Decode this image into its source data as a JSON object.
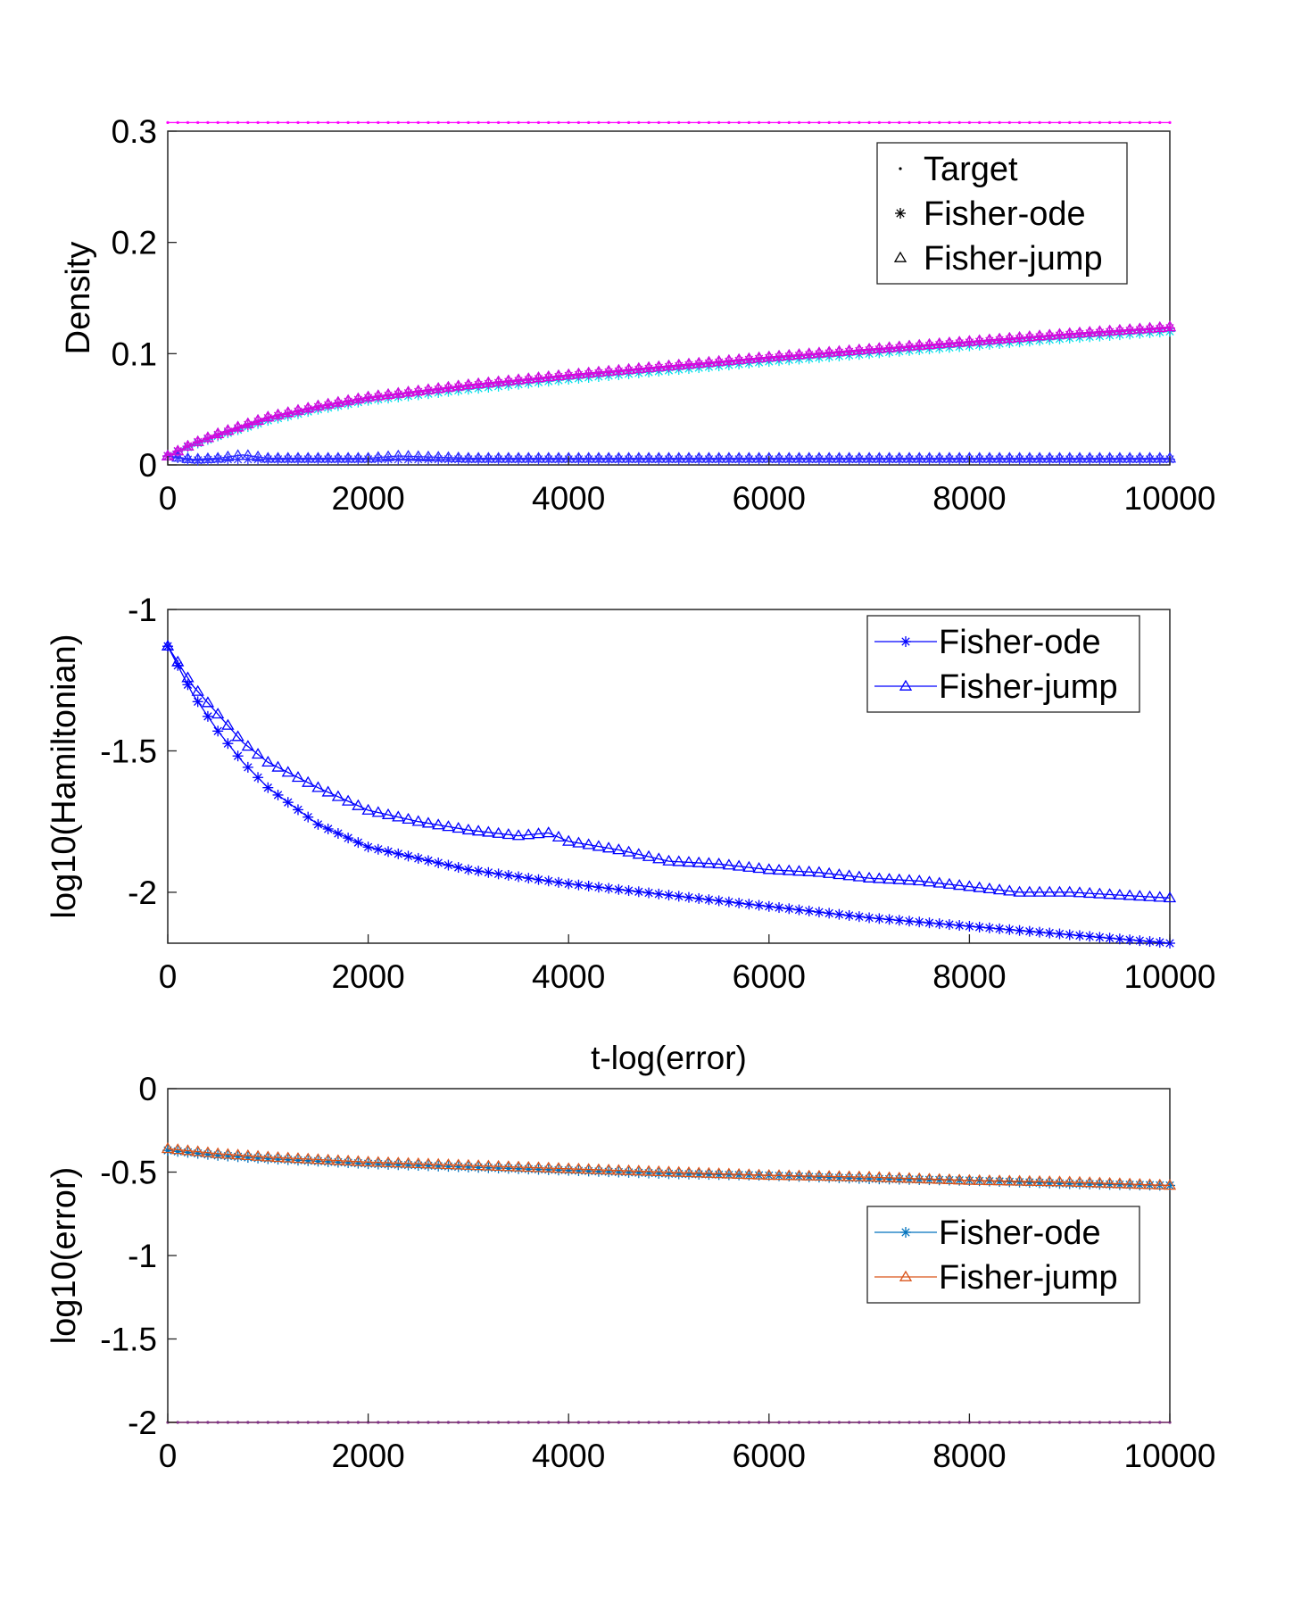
{
  "figure": {
    "background": "#ffffff",
    "axis_color": "#262626"
  },
  "chart_data": [
    {
      "type": "line",
      "title": "",
      "xlabel": "",
      "ylabel": "Density",
      "xlim": [
        0,
        10000
      ],
      "ylim": [
        0,
        0.3
      ],
      "xticks": [
        0,
        2000,
        4000,
        6000,
        8000,
        10000
      ],
      "xtick_labels": [
        "0",
        "2000",
        "4000",
        "6000",
        "8000",
        "10000"
      ],
      "yticks": [
        0,
        0.1,
        0.2,
        0.3
      ],
      "ytick_labels": [
        "0",
        "0.1",
        "0.2",
        "0.3"
      ],
      "grid": false,
      "legend": {
        "position": "top-right",
        "entries": [
          {
            "label": "Target",
            "marker": "dot",
            "color": "#000000",
            "line": false
          },
          {
            "label": "Fisher-ode",
            "marker": "star",
            "color": "#000000",
            "line": false
          },
          {
            "label": "Fisher-jump",
            "marker": "triangle",
            "color": "#000000",
            "line": false
          }
        ]
      },
      "series": [
        {
          "group": "Target",
          "marker": "dot",
          "color": "#ff00ff",
          "x": [
            0,
            10000
          ],
          "values": [
            0.3077,
            0.3077
          ]
        },
        {
          "group": "Fisher-ode",
          "marker": "star",
          "color": "#00e0e8",
          "x": [
            0,
            250,
            500,
            1000,
            1500,
            2000,
            3000,
            4000,
            5000,
            6000,
            7000,
            8000,
            9000,
            10000
          ],
          "values": [
            0.008,
            0.018,
            0.026,
            0.04,
            0.05,
            0.058,
            0.068,
            0.077,
            0.085,
            0.093,
            0.1,
            0.107,
            0.114,
            0.12
          ]
        },
        {
          "group": "Fisher-ode",
          "marker": "star",
          "color": "#3333ff",
          "x": [
            0,
            250,
            500,
            1000,
            1500,
            2000,
            3000,
            4000,
            5000,
            6000,
            7000,
            8000,
            9000,
            10000
          ],
          "values": [
            0.008,
            0.004,
            0.005,
            0.005,
            0.005,
            0.005,
            0.005,
            0.005,
            0.005,
            0.005,
            0.005,
            0.005,
            0.005,
            0.005
          ]
        },
        {
          "group": "Fisher-ode",
          "marker": "star",
          "color": "#dd00dd",
          "x": [
            0,
            250,
            500,
            1000,
            1500,
            2000,
            3000,
            4000,
            5000,
            6000,
            7000,
            8000,
            9000,
            10000
          ],
          "values": [
            0.008,
            0.019,
            0.027,
            0.042,
            0.052,
            0.06,
            0.071,
            0.08,
            0.088,
            0.096,
            0.103,
            0.11,
            0.117,
            0.123
          ]
        },
        {
          "group": "Fisher-jump",
          "marker": "triangle",
          "color": "#00e0e8",
          "x": [
            0,
            250,
            500,
            1000,
            1500,
            2000,
            3000,
            4000,
            5000,
            6000,
            7000,
            8000,
            9000,
            10000
          ],
          "values": [
            0.008,
            0.019,
            0.028,
            0.043,
            0.053,
            0.061,
            0.072,
            0.081,
            0.089,
            0.097,
            0.104,
            0.111,
            0.118,
            0.124
          ]
        },
        {
          "group": "Fisher-jump",
          "marker": "triangle",
          "color": "#2a2aff",
          "x": [
            0,
            250,
            500,
            750,
            1000,
            1500,
            2000,
            2300,
            3000,
            4000,
            5000,
            6000,
            7000,
            8000,
            9000,
            10000
          ],
          "values": [
            0.008,
            0.005,
            0.006,
            0.009,
            0.006,
            0.006,
            0.006,
            0.008,
            0.006,
            0.006,
            0.006,
            0.006,
            0.006,
            0.006,
            0.006,
            0.006
          ]
        },
        {
          "group": "Fisher-jump",
          "marker": "triangle",
          "color": "#dd00dd",
          "x": [
            0,
            250,
            500,
            1000,
            1500,
            2000,
            3000,
            4000,
            5000,
            6000,
            7000,
            8000,
            9000,
            10000
          ],
          "values": [
            0.008,
            0.019,
            0.028,
            0.043,
            0.053,
            0.061,
            0.072,
            0.081,
            0.089,
            0.097,
            0.104,
            0.111,
            0.118,
            0.124
          ]
        }
      ]
    },
    {
      "type": "line",
      "title": "",
      "xlabel": "",
      "ylabel": "log10(Hamiltonian)",
      "xlim": [
        0,
        10000
      ],
      "ylim": [
        -2.18,
        -1
      ],
      "xticks": [
        0,
        2000,
        4000,
        6000,
        8000,
        10000
      ],
      "xtick_labels": [
        "0",
        "2000",
        "4000",
        "6000",
        "8000",
        "10000"
      ],
      "yticks": [
        -1,
        -1.5,
        -2
      ],
      "ytick_labels": [
        "-1",
        "-1.5",
        "-2"
      ],
      "grid": false,
      "legend": {
        "position": "top-right",
        "entries": [
          {
            "label": "Fisher-ode",
            "marker": "star",
            "color": "#0000ff",
            "line": true
          },
          {
            "label": "Fisher-jump",
            "marker": "triangle",
            "color": "#0000ff",
            "line": true
          }
        ]
      },
      "series": [
        {
          "name": "Fisher-ode",
          "marker": "star",
          "color": "#0000ff",
          "x": [
            0,
            250,
            500,
            750,
            1000,
            1500,
            2000,
            3000,
            4000,
            5000,
            6000,
            7000,
            8000,
            9000,
            10000
          ],
          "values": [
            -1.13,
            -1.3,
            -1.43,
            -1.54,
            -1.63,
            -1.76,
            -1.84,
            -1.92,
            -1.97,
            -2.01,
            -2.05,
            -2.09,
            -2.12,
            -2.15,
            -2.18
          ]
        },
        {
          "name": "Fisher-jump",
          "marker": "triangle",
          "color": "#0000ff",
          "x": [
            0,
            250,
            500,
            750,
            1000,
            1500,
            2000,
            2500,
            3000,
            3500,
            3800,
            4000,
            4500,
            5000,
            5500,
            6000,
            6500,
            7000,
            7500,
            8000,
            8500,
            9000,
            9500,
            10000
          ],
          "values": [
            -1.13,
            -1.27,
            -1.37,
            -1.47,
            -1.54,
            -1.63,
            -1.71,
            -1.75,
            -1.78,
            -1.8,
            -1.79,
            -1.82,
            -1.85,
            -1.89,
            -1.9,
            -1.92,
            -1.93,
            -1.95,
            -1.96,
            -1.98,
            -2.0,
            -2.0,
            -2.01,
            -2.02
          ]
        }
      ]
    },
    {
      "type": "line",
      "title": "t-log(error)",
      "xlabel": "",
      "ylabel": "log10(error)",
      "xlim": [
        0,
        10000
      ],
      "ylim": [
        -2,
        0
      ],
      "xticks": [
        0,
        2000,
        4000,
        6000,
        8000,
        10000
      ],
      "xtick_labels": [
        "0",
        "2000",
        "4000",
        "6000",
        "8000",
        "10000"
      ],
      "yticks": [
        0,
        -0.5,
        -1,
        -1.5,
        -2
      ],
      "ytick_labels": [
        "0",
        "-0.5",
        "-1",
        "-1.5",
        "-2"
      ],
      "grid": false,
      "legend": {
        "position": "middle-right",
        "entries": [
          {
            "label": "Fisher-ode",
            "marker": "star",
            "color": "#0072bd",
            "line": true
          },
          {
            "label": "Fisher-jump",
            "marker": "triangle",
            "color": "#d95319",
            "line": true
          }
        ]
      },
      "series": [
        {
          "name": "Fisher-ode",
          "marker": "star",
          "color": "#0072bd",
          "x": [
            0,
            500,
            1000,
            2000,
            3000,
            4000,
            5000,
            6000,
            7000,
            8000,
            9000,
            10000
          ],
          "values": [
            -0.37,
            -0.4,
            -0.42,
            -0.45,
            -0.47,
            -0.49,
            -0.51,
            -0.52,
            -0.54,
            -0.55,
            -0.57,
            -0.58
          ]
        },
        {
          "name": "Fisher-jump",
          "marker": "triangle",
          "color": "#d95319",
          "x": [
            0,
            500,
            1000,
            2000,
            3000,
            4000,
            5000,
            6000,
            7000,
            8000,
            9000,
            10000
          ],
          "values": [
            -0.36,
            -0.39,
            -0.41,
            -0.44,
            -0.46,
            -0.48,
            -0.5,
            -0.52,
            -0.53,
            -0.55,
            -0.56,
            -0.58
          ]
        },
        {
          "marker": "dot",
          "color": "#edb120",
          "x": [
            0,
            10000
          ],
          "values": [
            -2,
            -2
          ]
        },
        {
          "marker": "dot",
          "color": "#7e2f8e",
          "x": [
            0,
            10000
          ],
          "values": [
            -2,
            -2
          ]
        }
      ]
    }
  ]
}
